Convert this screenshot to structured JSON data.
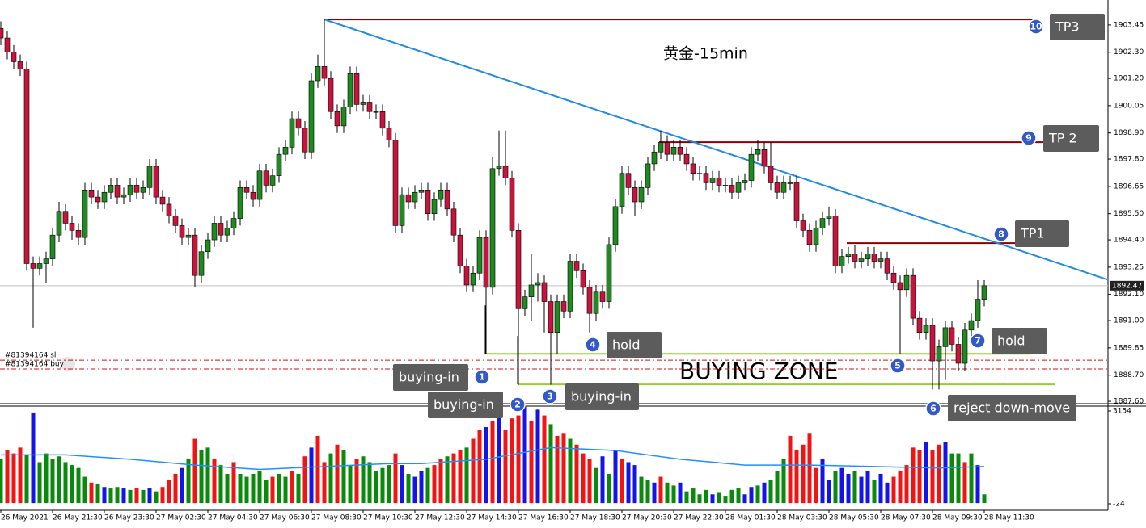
{
  "chart_data": {
    "type": "candlestick",
    "title": "黄金-15min",
    "up_color": "#1f8a1f",
    "down_color": "#c8143c",
    "wick_color": "#000000",
    "xlim": [
      -0.125,
      171.125
    ],
    "ylim": [
      1887.5,
      1904.5
    ],
    "xticks": [
      {
        "value": 0,
        "label": "26 May 2021"
      },
      {
        "value": 8,
        "label": "26 May 21:30"
      },
      {
        "value": 16,
        "label": "26 May 23:30"
      },
      {
        "value": 24,
        "label": "27 May 02:30"
      },
      {
        "value": 32,
        "label": "27 May 04:30"
      },
      {
        "value": 40,
        "label": "27 May 06:30"
      },
      {
        "value": 48,
        "label": "27 May 08:30"
      },
      {
        "value": 56,
        "label": "27 May 10:30"
      },
      {
        "value": 64,
        "label": "27 May 12:30"
      },
      {
        "value": 72,
        "label": "27 May 14:30"
      },
      {
        "value": 80,
        "label": "27 May 16:30"
      },
      {
        "value": 88,
        "label": "27 May 18:30"
      },
      {
        "value": 96,
        "label": "27 May 20:30"
      },
      {
        "value": 104,
        "label": "27 May 22:30"
      },
      {
        "value": 112,
        "label": "28 May 01:30"
      },
      {
        "value": 120,
        "label": "28 May 03:30"
      },
      {
        "value": 128,
        "label": "28 May 05:30"
      },
      {
        "value": 136,
        "label": "28 May 07:30"
      },
      {
        "value": 144,
        "label": "28 May 09:30"
      },
      {
        "value": 152,
        "label": "28 May 11:30"
      }
    ],
    "yticks": [
      {
        "value": 1903.45,
        "label": "1903.45"
      },
      {
        "value": 1902.3,
        "label": "1902.30"
      },
      {
        "value": 1901.2,
        "label": "1901.20"
      },
      {
        "value": 1900.05,
        "label": "1900.05"
      },
      {
        "value": 1898.9,
        "label": "1898.90"
      },
      {
        "value": 1897.8,
        "label": "1897.80"
      },
      {
        "value": 1896.65,
        "label": "1896.65"
      },
      {
        "value": 1895.5,
        "label": "1895.50"
      },
      {
        "value": 1894.4,
        "label": "1894.40"
      },
      {
        "value": 1893.25,
        "label": "1893.25"
      },
      {
        "value": 1892.1,
        "label": "1892.10"
      },
      {
        "value": 1891.0,
        "label": "1891.00"
      },
      {
        "value": 1889.85,
        "label": "1889.85"
      },
      {
        "value": 1888.7,
        "label": "1888.70"
      },
      {
        "value": 1887.6,
        "label": "1887.60"
      }
    ],
    "current_price": 1892.47,
    "open": [
      1903.3,
      1902.9,
      1902.3,
      1901.9,
      1901.6,
      1893.4,
      1893.2,
      1893.4,
      1893.6,
      1894.6,
      1895.6,
      1895.1,
      1894.8,
      1894.5,
      1896.5,
      1896.2,
      1896.0,
      1896.4,
      1896.7,
      1896.2,
      1896.3,
      1896.7,
      1896.4,
      1896.6,
      1897.5,
      1896.2,
      1895.9,
      1895.4,
      1895.0,
      1894.5,
      1894.6,
      1892.9,
      1893.9,
      1894.4,
      1895.1,
      1894.6,
      1894.9,
      1895.3,
      1896.6,
      1896.4,
      1896.1,
      1897.3,
      1896.7,
      1897.1,
      1898.0,
      1898.3,
      1899.5,
      1899.1,
      1898.1,
      1901.1,
      1901.7,
      1901.2,
      1899.8,
      1899.2,
      1900.0,
      1901.4,
      1900.1,
      1900.2,
      1899.8,
      1899.8,
      1899.1,
      1898.6,
      1895.0,
      1896.3,
      1896.0,
      1896.4,
      1896.5,
      1895.5,
      1896.1,
      1896.5,
      1895.7,
      1894.6,
      1893.3,
      1892.5,
      1893.0,
      1894.5,
      1892.4,
      1897.4,
      1897.5,
      1897.0,
      1894.8,
      1891.5,
      1892.0,
      1892.5,
      1892.6,
      1891.8,
      1890.5,
      1891.8,
      1891.4,
      1893.5,
      1893.1,
      1892.4,
      1891.3,
      1892.2,
      1891.8,
      1894.2,
      1895.8,
      1897.2,
      1896.6,
      1896.0,
      1896.6,
      1897.6,
      1898.1,
      1898.5,
      1898.0,
      1898.3,
      1898.0,
      1897.6,
      1897.2,
      1897.2,
      1896.8,
      1897.0,
      1896.7,
      1896.7,
      1896.4,
      1896.8,
      1896.9,
      1898.0,
      1898.2,
      1897.5,
      1896.8,
      1896.4,
      1896.8,
      1896.8,
      1895.2,
      1894.8,
      1894.2,
      1894.9,
      1895.3,
      1895.4,
      1893.3,
      1893.7,
      1893.8,
      1893.5,
      1893.6,
      1893.8,
      1893.5,
      1893.6,
      1893.0,
      1892.6,
      1892.3,
      1892.9,
      1891.1,
      1890.5,
      1890.8,
      1889.3,
      1889.9,
      1890.7,
      1890.0,
      1889.2,
      1890.6,
      1891.0,
      1891.9
    ],
    "high": [
      1903.6,
      1903.2,
      1902.6,
      1902.2,
      1901.9,
      1893.7,
      1893.7,
      1893.9,
      1894.9,
      1896.0,
      1895.9,
      1895.4,
      1895.1,
      1896.8,
      1896.8,
      1896.5,
      1896.7,
      1897.0,
      1897.0,
      1896.6,
      1897.0,
      1897.0,
      1896.9,
      1897.8,
      1897.8,
      1896.5,
      1896.2,
      1895.7,
      1895.3,
      1894.9,
      1894.9,
      1894.2,
      1894.7,
      1895.4,
      1895.4,
      1895.2,
      1895.6,
      1896.9,
      1896.9,
      1896.7,
      1897.6,
      1897.6,
      1897.4,
      1898.3,
      1898.6,
      1899.8,
      1899.8,
      1899.4,
      1901.4,
      1902.2,
      1903.68,
      1901.5,
      1900.1,
      1900.3,
      1901.7,
      1901.7,
      1900.5,
      1900.5,
      1900.1,
      1900.1,
      1899.4,
      1898.9,
      1896.6,
      1896.6,
      1896.7,
      1896.8,
      1896.8,
      1896.4,
      1896.8,
      1896.8,
      1896.0,
      1894.9,
      1893.6,
      1893.3,
      1894.8,
      1894.8,
      1897.9,
      1899.0,
      1899.0,
      1897.3,
      1895.1,
      1892.3,
      1893.8,
      1893.0,
      1892.9,
      1892.1,
      1892.1,
      1892.1,
      1893.8,
      1893.8,
      1893.4,
      1892.7,
      1892.5,
      1892.5,
      1894.5,
      1896.1,
      1897.5,
      1897.5,
      1896.9,
      1896.9,
      1897.9,
      1898.4,
      1899.0,
      1898.8,
      1898.6,
      1898.6,
      1898.3,
      1897.9,
      1897.5,
      1897.5,
      1897.3,
      1897.3,
      1897.0,
      1897.0,
      1897.1,
      1897.2,
      1898.3,
      1898.6,
      1898.5,
      1898.5,
      1897.1,
      1897.1,
      1897.1,
      1897.1,
      1895.5,
      1895.1,
      1895.2,
      1895.6,
      1895.8,
      1895.7,
      1894.0,
      1894.1,
      1894.2,
      1893.9,
      1894.1,
      1894.1,
      1893.9,
      1893.9,
      1893.3,
      1892.9,
      1893.2,
      1893.2,
      1891.4,
      1891.1,
      1891.1,
      1890.2,
      1891.0,
      1891.0,
      1890.3,
      1890.9,
      1891.3,
      1892.7,
      1892.7
    ],
    "low": [
      1902.6,
      1902.0,
      1901.6,
      1901.3,
      1893.1,
      1890.7,
      1892.9,
      1892.6,
      1893.3,
      1894.3,
      1894.8,
      1894.4,
      1894.2,
      1894.2,
      1895.9,
      1895.7,
      1895.7,
      1896.1,
      1895.9,
      1895.9,
      1896.0,
      1896.1,
      1896.1,
      1896.3,
      1895.9,
      1895.6,
      1895.1,
      1894.7,
      1894.2,
      1894.2,
      1892.4,
      1892.6,
      1893.6,
      1894.1,
      1894.3,
      1894.3,
      1894.6,
      1895.0,
      1896.1,
      1895.8,
      1895.8,
      1896.4,
      1896.4,
      1896.8,
      1897.7,
      1898.0,
      1898.8,
      1897.8,
      1897.8,
      1900.8,
      1900.9,
      1899.5,
      1898.9,
      1898.9,
      1899.7,
      1899.8,
      1899.8,
      1899.5,
      1899.5,
      1898.8,
      1898.3,
      1894.7,
      1894.7,
      1895.7,
      1895.7,
      1896.1,
      1895.2,
      1895.2,
      1895.8,
      1895.4,
      1894.3,
      1893.0,
      1892.2,
      1892.2,
      1892.7,
      1889.6,
      1892.1,
      1897.1,
      1896.7,
      1894.5,
      1888.3,
      1891.2,
      1891.0,
      1891.8,
      1890.5,
      1888.3,
      1889.6,
      1891.1,
      1891.1,
      1892.8,
      1892.1,
      1890.5,
      1891.0,
      1891.5,
      1891.5,
      1893.9,
      1895.5,
      1896.3,
      1895.4,
      1895.7,
      1896.3,
      1897.3,
      1897.8,
      1897.7,
      1897.7,
      1897.7,
      1897.3,
      1896.9,
      1896.9,
      1896.5,
      1896.5,
      1896.4,
      1896.4,
      1896.1,
      1896.1,
      1896.5,
      1896.6,
      1897.7,
      1897.2,
      1896.5,
      1896.1,
      1896.1,
      1896.5,
      1894.9,
      1894.5,
      1893.9,
      1893.9,
      1894.6,
      1895.0,
      1893.0,
      1893.0,
      1893.4,
      1893.2,
      1893.2,
      1893.3,
      1893.2,
      1893.2,
      1892.7,
      1892.3,
      1889.6,
      1892.0,
      1890.8,
      1890.2,
      1890.2,
      1888.1,
      1888.1,
      1888.5,
      1889.7,
      1888.9,
      1888.9,
      1890.3,
      1890.7,
      1891.6
    ],
    "close": [
      1902.9,
      1902.3,
      1901.9,
      1901.6,
      1893.4,
      1893.2,
      1893.4,
      1893.6,
      1894.6,
      1895.6,
      1895.1,
      1894.8,
      1894.5,
      1896.5,
      1896.2,
      1896.0,
      1896.4,
      1896.7,
      1896.2,
      1896.3,
      1896.7,
      1896.4,
      1896.6,
      1897.5,
      1896.2,
      1895.9,
      1895.4,
      1895.0,
      1894.5,
      1894.6,
      1892.9,
      1893.9,
      1894.4,
      1895.1,
      1894.6,
      1894.9,
      1895.3,
      1896.6,
      1896.4,
      1896.1,
      1897.3,
      1896.7,
      1897.1,
      1898.0,
      1898.3,
      1899.5,
      1899.1,
      1898.1,
      1901.1,
      1901.7,
      1901.2,
      1899.8,
      1899.2,
      1900.0,
      1901.4,
      1900.1,
      1900.2,
      1899.8,
      1899.8,
      1899.1,
      1898.6,
      1895.0,
      1896.3,
      1896.0,
      1896.4,
      1896.5,
      1895.5,
      1896.1,
      1896.5,
      1895.7,
      1894.6,
      1893.3,
      1892.5,
      1893.0,
      1894.5,
      1892.4,
      1897.4,
      1897.5,
      1897.0,
      1894.8,
      1891.5,
      1892.0,
      1892.5,
      1892.6,
      1891.8,
      1890.5,
      1891.8,
      1891.4,
      1893.5,
      1893.1,
      1892.4,
      1891.3,
      1892.2,
      1891.8,
      1894.2,
      1895.8,
      1897.2,
      1896.6,
      1896.0,
      1896.6,
      1897.6,
      1898.1,
      1898.5,
      1898.0,
      1898.3,
      1898.0,
      1897.6,
      1897.2,
      1897.2,
      1896.8,
      1897.0,
      1896.7,
      1896.7,
      1896.4,
      1896.8,
      1896.9,
      1898.0,
      1898.2,
      1897.5,
      1896.8,
      1896.4,
      1896.8,
      1896.8,
      1895.2,
      1894.8,
      1894.2,
      1894.9,
      1895.3,
      1895.4,
      1893.3,
      1893.7,
      1893.8,
      1893.5,
      1893.6,
      1893.8,
      1893.5,
      1893.6,
      1893.0,
      1892.6,
      1892.3,
      1892.9,
      1891.1,
      1890.5,
      1890.8,
      1889.3,
      1889.9,
      1890.7,
      1890.0,
      1889.2,
      1890.6,
      1891.0,
      1891.9,
      1892.47
    ],
    "volume_ylim": [
      -24,
      3154
    ],
    "volume_yticks": [
      3154,
      -24
    ],
    "volume_palette": {
      "g": "#0a8a0a",
      "r": "#f01414",
      "b": "#1414e8"
    },
    "volume": [
      1500,
      1800,
      1700,
      1900,
      1650,
      3100,
      1400,
      1700,
      1500,
      1600,
      1400,
      1300,
      1200,
      900,
      700,
      650,
      550,
      500,
      550,
      500,
      450,
      500,
      450,
      500,
      400,
      550,
      800,
      1000,
      1200,
      1500,
      2200,
      1800,
      1900,
      1500,
      1300,
      1000,
      1400,
      1000,
      900,
      1000,
      1100,
      800,
      900,
      1000,
      900,
      1100,
      1000,
      1600,
      1900,
      2300,
      1400,
      1700,
      2000,
      1800,
      1300,
      1500,
      1600,
      1400,
      1100,
      1200,
      1300,
      1700,
      1300,
      1000,
      900,
      1100,
      1200,
      1300,
      1500,
      1600,
      1700,
      1800,
      1900,
      2200,
      2500,
      2600,
      2800,
      3400,
      2500,
      2900,
      3000,
      3300,
      2800,
      3200,
      3000,
      2700,
      2300,
      2400,
      2200,
      2000,
      1700,
      1500,
      1200,
      1600,
      1000,
      1800,
      1500,
      1400,
      1300,
      900,
      800,
      700,
      900,
      700,
      600,
      700,
      400,
      500,
      300,
      450,
      300,
      350,
      250,
      450,
      500,
      300,
      550,
      600,
      700,
      800,
      1100,
      1500,
      2300,
      1800,
      2000,
      2400,
      1200,
      1500,
      800,
      1100,
      1200,
      1000,
      1100,
      900,
      1100,
      800,
      1000,
      700,
      900,
      1100,
      1300,
      1900,
      1800,
      2100,
      1800,
      2000,
      2100,
      1700,
      1700,
      1400,
      1700,
      1300,
      300
    ],
    "volume_colors": [
      "g",
      "r",
      "r",
      "r",
      "g",
      "b",
      "g",
      "g",
      "g",
      "g",
      "g",
      "g",
      "g",
      "g",
      "r",
      "g",
      "b",
      "g",
      "g",
      "b",
      "g",
      "r",
      "g",
      "b",
      "g",
      "r",
      "r",
      "r",
      "b",
      "g",
      "r",
      "g",
      "g",
      "r",
      "g",
      "g",
      "r",
      "g",
      "g",
      "g",
      "g",
      "g",
      "r",
      "g",
      "g",
      "r",
      "g",
      "r",
      "b",
      "r",
      "r",
      "g",
      "r",
      "g",
      "g",
      "r",
      "g",
      "g",
      "g",
      "g",
      "g",
      "r",
      "b",
      "g",
      "b",
      "b",
      "g",
      "r",
      "r",
      "g",
      "r",
      "r",
      "g",
      "r",
      "r",
      "b",
      "r",
      "b",
      "r",
      "r",
      "r",
      "b",
      "r",
      "b",
      "r",
      "g",
      "r",
      "r",
      "g",
      "r",
      "r",
      "r",
      "g",
      "b",
      "g",
      "b",
      "r",
      "b",
      "b",
      "g",
      "g",
      "b",
      "r",
      "g",
      "g",
      "b",
      "g",
      "g",
      "g",
      "g",
      "b",
      "g",
      "g",
      "g",
      "g",
      "b",
      "b",
      "g",
      "b",
      "g",
      "g",
      "g",
      "r",
      "r",
      "r",
      "r",
      "r",
      "b",
      "b",
      "g",
      "b",
      "b",
      "g",
      "b",
      "b",
      "g",
      "b",
      "b",
      "r",
      "r",
      "r",
      "r",
      "r",
      "b",
      "r",
      "r",
      "b",
      "g",
      "g",
      "r",
      "g",
      "b",
      "g"
    ],
    "volume_ma": {
      "color": "#1e90ff",
      "x": [
        0,
        10,
        20,
        30,
        40,
        50,
        60,
        65,
        75,
        85,
        95,
        105,
        115,
        125,
        135,
        145,
        152
      ],
      "values": [
        1650,
        1650,
        1500,
        1300,
        1150,
        1250,
        1350,
        1350,
        1500,
        1900,
        1800,
        1500,
        1300,
        1300,
        1250,
        1200,
        1250
      ]
    },
    "trendline": {
      "color": "#1e8ce6",
      "x": [
        50,
        171
      ],
      "values": [
        1903.68,
        1892.73
      ]
    },
    "tp_levels": {
      "color": "#8b0000",
      "values": [
        1903.68,
        1898.51,
        1894.26
      ]
    },
    "zone_levels": {
      "color": "#9acd32",
      "values": [
        1889.6,
        1888.31
      ]
    },
    "zone_label": "BUYING ZONE",
    "order_levels": {
      "color": "#c81414",
      "items": [
        {
          "label": "#81394164 sl",
          "value": 1889.33
        },
        {
          "label": "#81394164 buy",
          "value": 1888.96
        }
      ]
    },
    "annotations": [
      {
        "num": 10,
        "label": "TP3"
      },
      {
        "num": 9,
        "label": "TP 2"
      },
      {
        "num": 8,
        "label": "TP1"
      },
      {
        "num": 4,
        "label": "hold"
      },
      {
        "num": 7,
        "label": "hold"
      },
      {
        "num": 1,
        "label": "buying-in"
      },
      {
        "num": 2,
        "label": "buying-in"
      },
      {
        "num": 3,
        "label": "buying-in"
      },
      {
        "num": 6,
        "label": "reject down-move"
      },
      {
        "num": 5
      }
    ]
  }
}
